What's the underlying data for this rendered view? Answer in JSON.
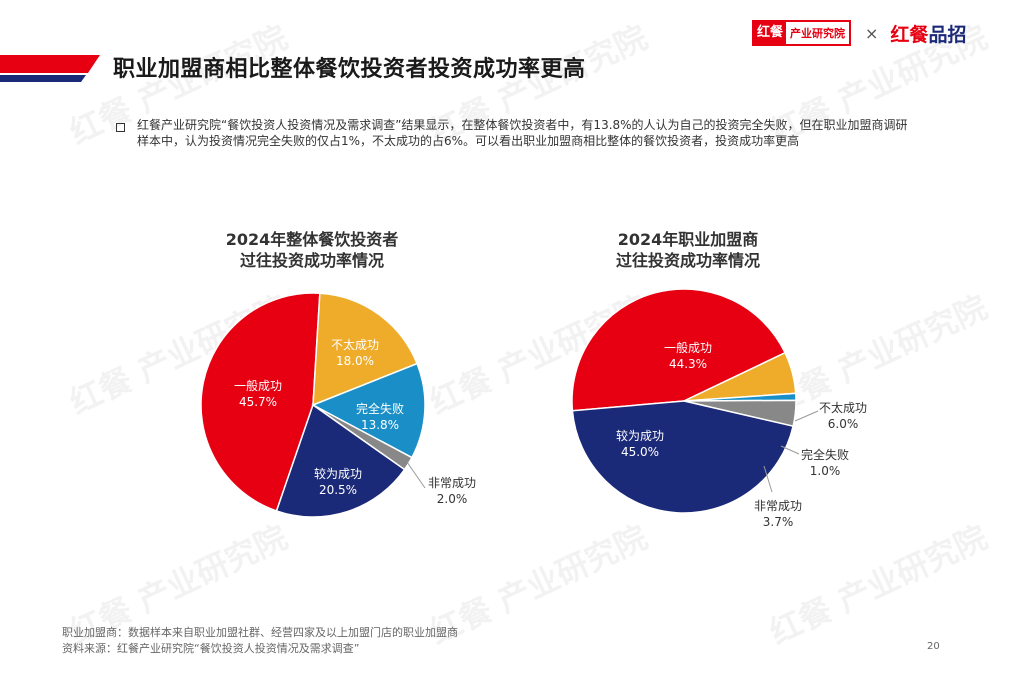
{
  "header": {
    "title": "职业加盟商相比整体餐饮投资者投资成功率更高",
    "logo_left_mark": "红餐",
    "logo_left_sub": "产业研究院",
    "logo_x": "×",
    "logo_right_a": "红餐",
    "logo_right_b": "品招"
  },
  "description": "红餐产业研究院“餐饮投资人投资情况及需求调查”结果显示，在整体餐饮投资者中，有13.8%的人认为自己的投资完全失败，但在职业加盟商调研样本中，认为投资情况完全失败的仅占1%，不太成功的占6%。可以看出职业加盟商相比整体的餐饮投资者，投资成功率更高",
  "watermark_text": "红餐 产业研究院",
  "colors": {
    "accent_red": "#e60012",
    "navy": "#1b2a78",
    "yellow": "#eeac2a",
    "blue": "#1a8fc7",
    "gray": "#888888"
  },
  "chart_data": [
    {
      "type": "pie",
      "title_line1": "2024年整体餐饮投资者",
      "title_line2": "过往投资成功率情况",
      "slices": [
        {
          "label": "一般成功",
          "value": 45.7,
          "display": "45.7%",
          "color": "#e60012"
        },
        {
          "label": "不太成功",
          "value": 18.0,
          "display": "18.0%",
          "color": "#eeac2a"
        },
        {
          "label": "完全失败",
          "value": 13.8,
          "display": "13.8%",
          "color": "#1a8fc7"
        },
        {
          "label": "非常成功",
          "value": 2.0,
          "display": "2.0%",
          "color": "#888888"
        },
        {
          "label": "较为成功",
          "value": 20.5,
          "display": "20.5%",
          "color": "#1b2a78"
        }
      ]
    },
    {
      "type": "pie",
      "title_line1": "2024年职业加盟商",
      "title_line2": "过往投资成功率情况",
      "slices": [
        {
          "label": "一般成功",
          "value": 44.3,
          "display": "44.3%",
          "color": "#e60012"
        },
        {
          "label": "不太成功",
          "value": 6.0,
          "display": "6.0%",
          "color": "#eeac2a"
        },
        {
          "label": "完全失败",
          "value": 1.0,
          "display": "1.0%",
          "color": "#1a8fc7"
        },
        {
          "label": "非常成功",
          "value": 3.7,
          "display": "3.7%",
          "color": "#888888"
        },
        {
          "label": "较为成功",
          "value": 45.0,
          "display": "45.0%",
          "color": "#1b2a78"
        }
      ]
    }
  ],
  "footnotes": {
    "line1": "职业加盟商：数据样本来自职业加盟社群、经营四家及以上加盟门店的职业加盟商",
    "line2": "资料来源：红餐产业研究院“餐饮投资人投资情况及需求调查”"
  },
  "page_number": "20"
}
